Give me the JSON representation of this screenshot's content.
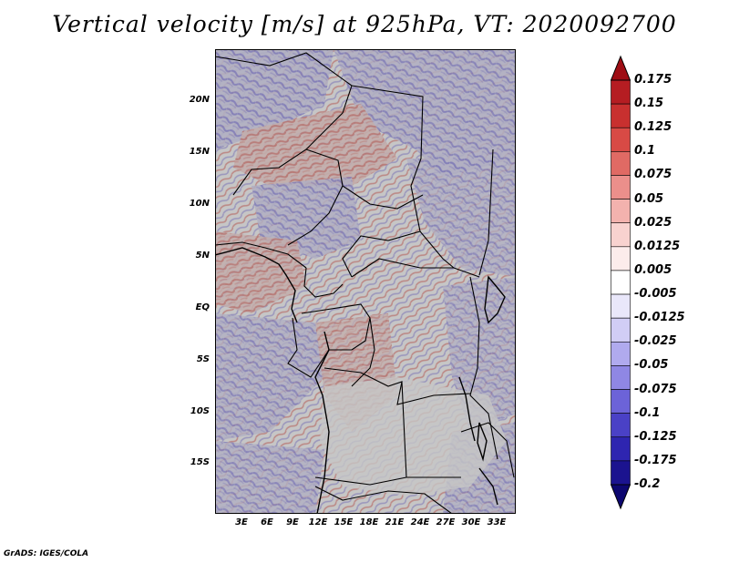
{
  "title": "Vertical velocity [m/s] at 925hPa, VT: 2020092700",
  "credit": "GrADS: IGES/COLA",
  "y_axis_labels": [
    "20N",
    "15N",
    "10N",
    "5N",
    "EQ",
    "5S",
    "10S",
    "15S"
  ],
  "x_axis_labels": [
    "3E",
    "6E",
    "9E",
    "12E",
    "15E",
    "18E",
    "21E",
    "24E",
    "27E",
    "30E",
    "33E"
  ],
  "colorbar": {
    "labels": [
      "0.175",
      "0.15",
      "0.125",
      "0.1",
      "0.075",
      "0.05",
      "0.025",
      "0.0125",
      "0.005",
      "-0.005",
      "-0.0125",
      "-0.025",
      "-0.05",
      "-0.075",
      "-0.1",
      "-0.125",
      "-0.175",
      "-0.2"
    ],
    "colors": [
      "#a50f15",
      "#b51d22",
      "#c8302f",
      "#d84a45",
      "#e06a64",
      "#eb8f8b",
      "#f3b2ae",
      "#f8d2cf",
      "#fceceb",
      "#ffffff",
      "#e9e7fa",
      "#d1cdf5",
      "#b0aaee",
      "#8f87e4",
      "#6c63d8",
      "#4a41c6",
      "#2e25b0",
      "#1b138f",
      "#0d0770"
    ]
  }
}
